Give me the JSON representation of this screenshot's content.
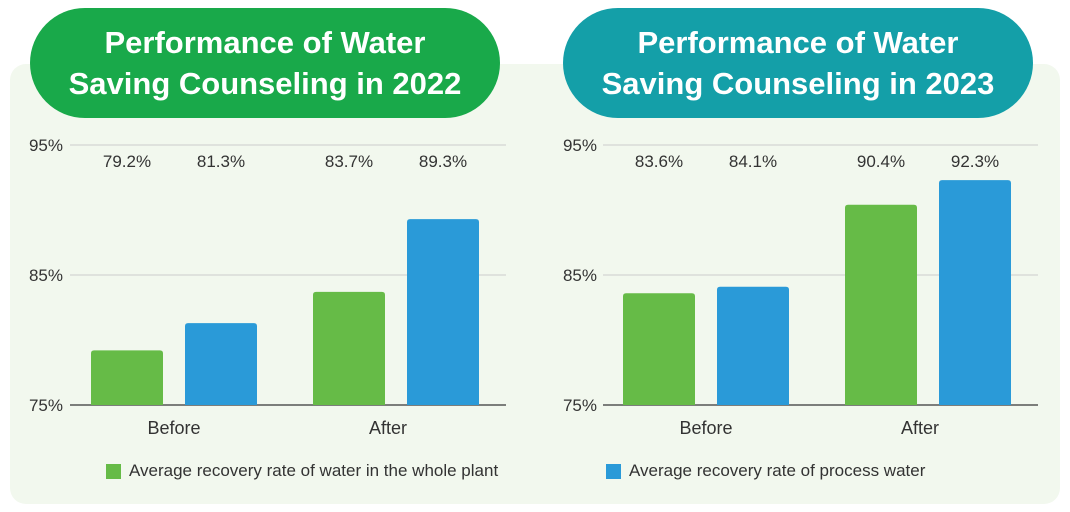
{
  "colors": {
    "whole_plant": "#66bb47",
    "process_water": "#2a9ad8",
    "title_left": "#19a94a",
    "title_right": "#149fa8",
    "grid": "#cccccc",
    "axis": "#555555",
    "text": "#333333"
  },
  "titles": {
    "left_line1": "Performance of Water",
    "left_line2": "Saving Counseling in 2022",
    "right_line1": "Performance of Water",
    "right_line2": "Saving Counseling in 2023"
  },
  "legend": {
    "whole_plant": "Average recovery rate of water in the whole plant",
    "process_water": "Average recovery rate of process water"
  },
  "chart_data": [
    {
      "type": "bar",
      "title": "Performance of Water Saving Counseling in 2022",
      "categories": [
        "Before",
        "After"
      ],
      "ylim": [
        75,
        95
      ],
      "yticks": [
        "95%",
        "85%",
        "75%"
      ],
      "series": [
        {
          "name": "Average recovery rate of water in the whole plant",
          "values": [
            79.2,
            83.7
          ],
          "labels": [
            "79.2%",
            "83.7%"
          ]
        },
        {
          "name": "Average recovery rate of process water",
          "values": [
            81.3,
            89.3
          ],
          "labels": [
            "81.3%",
            "89.3%"
          ]
        }
      ],
      "grid": true,
      "legend_position": "bottom"
    },
    {
      "type": "bar",
      "title": "Performance of Water Saving Counseling in 2023",
      "categories": [
        "Before",
        "After"
      ],
      "ylim": [
        75,
        95
      ],
      "yticks": [
        "95%",
        "85%",
        "75%"
      ],
      "series": [
        {
          "name": "Average recovery rate of water in the whole plant",
          "values": [
            83.6,
            90.4
          ],
          "labels": [
            "83.6%",
            "90.4%"
          ]
        },
        {
          "name": "Average recovery rate of process water",
          "values": [
            84.1,
            92.3
          ],
          "labels": [
            "84.1%",
            "92.3%"
          ]
        }
      ],
      "grid": true,
      "legend_position": "bottom"
    }
  ]
}
